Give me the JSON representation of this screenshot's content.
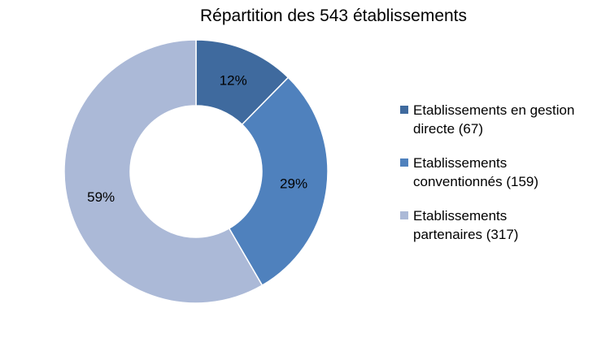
{
  "chart_data": {
    "type": "pie",
    "donut": true,
    "title": "Répartition des 543 établissements",
    "legend_position": "right",
    "slices": [
      {
        "label_lines": [
          "Etablissements en gestion",
          "directe (67)"
        ],
        "value": 67,
        "percent_label": "12%",
        "color": "#3f6a9e"
      },
      {
        "label_lines": [
          "Etablissements",
          "conventionnés (159)"
        ],
        "value": 159,
        "percent_label": "29%",
        "color": "#4f81bd"
      },
      {
        "label_lines": [
          "Etablissements",
          "partenaires (317)"
        ],
        "value": 317,
        "percent_label": "59%",
        "color": "#abb9d7"
      }
    ]
  }
}
